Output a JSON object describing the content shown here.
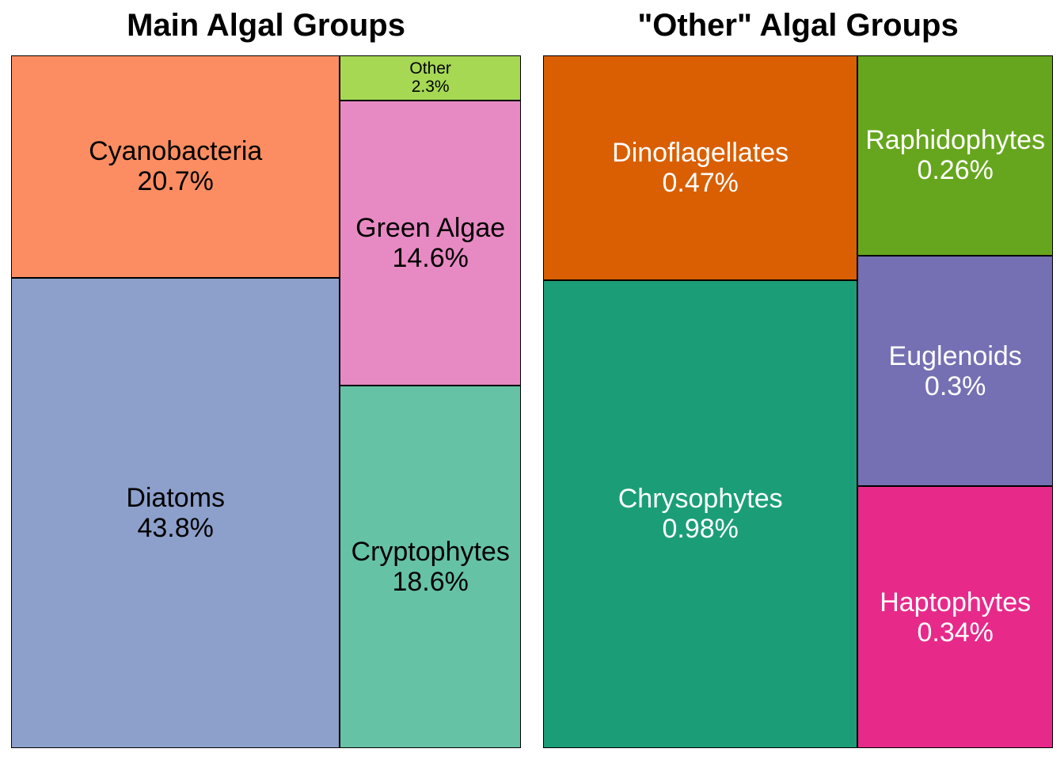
{
  "titles": {
    "left": "Main Algal Groups",
    "right": "\"Other\" Algal Groups"
  },
  "chart_data": [
    {
      "type": "treemap",
      "title": "Main Algal Groups",
      "unit": "%",
      "items": [
        {
          "name": "Diatoms",
          "value": 43.8,
          "label": "43.8%",
          "color": "#8DA0CB",
          "text_color": "#000000"
        },
        {
          "name": "Cyanobacteria",
          "value": 20.7,
          "label": "20.7%",
          "color": "#FC8D62",
          "text_color": "#000000"
        },
        {
          "name": "Cryptophytes",
          "value": 18.6,
          "label": "18.6%",
          "color": "#66C2A5",
          "text_color": "#000000"
        },
        {
          "name": "Green Algae",
          "value": 14.6,
          "label": "14.6%",
          "color": "#E78AC3",
          "text_color": "#000000"
        },
        {
          "name": "Other",
          "value": 2.3,
          "label": "2.3%",
          "color": "#A6D854",
          "text_color": "#000000"
        }
      ]
    },
    {
      "type": "treemap",
      "title": "\"Other\" Algal Groups",
      "unit": "%",
      "items": [
        {
          "name": "Chrysophytes",
          "value": 0.98,
          "label": "0.98%",
          "color": "#1B9E77",
          "text_color": "#FFFFFF"
        },
        {
          "name": "Dinoflagellates",
          "value": 0.47,
          "label": "0.47%",
          "color": "#D95F02",
          "text_color": "#FFFFFF"
        },
        {
          "name": "Haptophytes",
          "value": 0.34,
          "label": "0.34%",
          "color": "#E7298A",
          "text_color": "#FFFFFF"
        },
        {
          "name": "Euglenoids",
          "value": 0.3,
          "label": "0.3%",
          "color": "#7570B3",
          "text_color": "#FFFFFF"
        },
        {
          "name": "Raphidophytes",
          "value": 0.26,
          "label": "0.26%",
          "color": "#66A61E",
          "text_color": "#FFFFFF"
        }
      ]
    }
  ]
}
